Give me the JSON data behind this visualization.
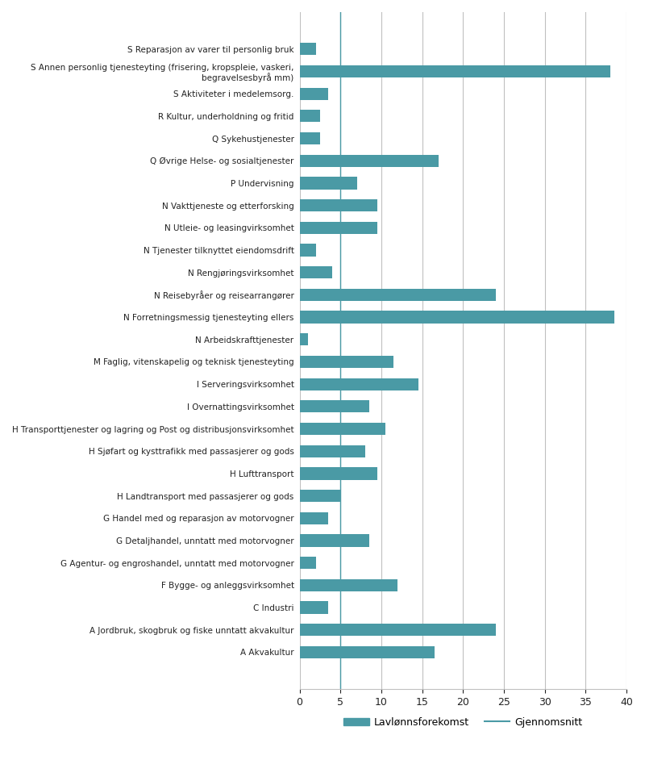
{
  "categories": [
    "A Akvakultur",
    "A Jordbruk, skogbruk og fiske unntatt akvakultur",
    "C Industri",
    "F Bygge- og anleggsvirksomhet",
    "G Agentur- og engroshandel, unntatt med motorvogner",
    "G Detaljhandel, unntatt med motorvogner",
    "G Handel med og reparasjon av motorvogner",
    "H Landtransport med passasjerer og gods",
    "H Lufttransport",
    "H Sjøfart og kysttrafikk med passasjerer og gods",
    "H Transporttjenester og lagring og Post og distribusjonsvirksomhet",
    "I Overnattingsvirksomhet",
    "I Serveringsvirksomhet",
    "M Faglig, vitenskapelig og teknisk tjenesteyting",
    "N Arbeidskrafttjenester",
    "N Forretningsmessig tjenesteyting ellers",
    "N Reisebyråer og reisearrangører",
    "N Rengjøringsvirksomhet",
    "N Tjenester tilknyttet eiendomsdrift",
    "N Utleie- og leasingvirksomhet",
    "N Vakttjeneste og etterforsking",
    "P Undervisning",
    "Q Øvrige Helse- og sosialtjenester",
    "Q Sykehustjenester",
    "R Kultur, underholdning og fritid",
    "S Aktiviteter i medelemsorg.",
    "S Annen personlig tjenesteyting (frisering, kropspleie, vaskeri,\nbegravelsesbyrå mm)",
    "S Reparasjon av varer til personlig bruk"
  ],
  "values": [
    2.0,
    38.0,
    3.5,
    2.5,
    2.5,
    17.0,
    7.0,
    9.5,
    9.5,
    2.0,
    4.0,
    24.0,
    38.5,
    1.0,
    11.5,
    14.5,
    8.5,
    10.5,
    8.0,
    9.5,
    5.0,
    3.5,
    8.5,
    2.0,
    12.0,
    3.5,
    24.0,
    16.5
  ],
  "bar_color": "#4a9aa5",
  "average_line": 5.0,
  "xlim": [
    0,
    40
  ],
  "xticks": [
    0,
    5,
    10,
    15,
    20,
    25,
    30,
    35,
    40
  ],
  "legend_bar_label": "Lavlønnsforekomst",
  "legend_line_label": "Gjennomsnitt",
  "background_color": "#ffffff",
  "grid_color": "#c0c0c0",
  "text_color": "#222222"
}
